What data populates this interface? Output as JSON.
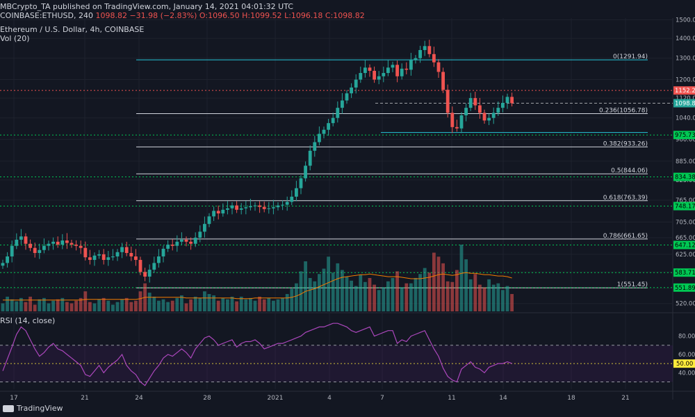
{
  "header": {
    "published": "MBCrypto_TA published on TradingView.com, January 14, 2021 04:01:32 UTC",
    "symbol": "COINBASE:ETHUSD, 240",
    "last": "1098.82",
    "change": "−31.98 (−2.83%)",
    "o": "O:1096.50",
    "h": "H:1099.52",
    "l": "L:1096.18",
    "c": "C:1098.82",
    "instrument": "Ethereum / U.S. Dollar, 4h, COINBASE",
    "vol": "Vol (20)",
    "rsi": "RSI (14, close)"
  },
  "brand": "TradingView",
  "colors": {
    "bg": "#131722",
    "up": "#26a69a",
    "down": "#ef5350",
    "rsi": "#7b1fa2",
    "fib": "#d1d4dc",
    "green": "#00c853",
    "red": "#ef5350",
    "cyan": "#26c6da",
    "vma": "#f57c00"
  },
  "chart_data": [
    {
      "type": "candlestick",
      "title": "Ethereum / U.S. Dollar, 4h, COINBASE",
      "x_ticks": [
        "17",
        "21",
        "24",
        "28",
        "2021",
        "4",
        "7",
        "11",
        "14",
        "18",
        "21"
      ],
      "y_ticks": [
        1500.0,
        1400.0,
        1300.0,
        1200.0,
        1120.0,
        1040.0,
        960.0,
        885.0,
        825.0,
        765.0,
        705.0,
        665.0,
        625.0,
        585.0,
        550.0,
        520.0
      ],
      "y_range": [
        505,
        1510
      ],
      "scale": "log",
      "last_price": "1098.82",
      "price_labels": [
        {
          "label": "1152.24",
          "value": 1152.24,
          "color": "red"
        },
        {
          "label": "1098.82",
          "value": 1098.82,
          "color": "up"
        },
        {
          "label": "975.73",
          "value": 975.73,
          "color": "green"
        },
        {
          "label": "834.38",
          "value": 834.38,
          "color": "green"
        },
        {
          "label": "748.17",
          "value": 748.17,
          "color": "green"
        },
        {
          "label": "647.12",
          "value": 647.12,
          "color": "green"
        },
        {
          "label": "583.71",
          "value": 583.71,
          "color": "green"
        },
        {
          "label": "551.89",
          "value": 551.89,
          "color": "green"
        }
      ],
      "fib_levels": [
        {
          "label": "0(1291.94)",
          "value": 1291.94
        },
        {
          "label": "0.236(1056.78)",
          "value": 1056.78
        },
        {
          "label": "0.382(933.26)",
          "value": 933.26
        },
        {
          "label": "0.5(844.06)",
          "value": 844.06
        },
        {
          "label": "0.618(763.39)",
          "value": 763.39
        },
        {
          "label": "0.786(661.65)",
          "value": 661.65
        },
        {
          "label": "1(551.45)",
          "value": 551.45
        }
      ],
      "close": [
        605,
        620,
        645,
        660,
        668,
        650,
        640,
        628,
        635,
        645,
        650,
        655,
        648,
        658,
        652,
        648,
        645,
        640,
        618,
        612,
        622,
        625,
        612,
        618,
        620,
        630,
        642,
        628,
        620,
        612,
        585,
        575,
        590,
        605,
        620,
        638,
        648,
        645,
        655,
        660,
        655,
        650,
        665,
        680,
        700,
        720,
        735,
        728,
        738,
        742,
        750,
        738,
        742,
        745,
        748,
        750,
        746,
        740,
        742,
        745,
        750,
        752,
        760,
        775,
        800,
        830,
        870,
        920,
        950,
        980,
        995,
        1020,
        1040,
        1080,
        1110,
        1140,
        1165,
        1200,
        1230,
        1255,
        1240,
        1200,
        1215,
        1230,
        1255,
        1268,
        1215,
        1250,
        1245,
        1290,
        1300,
        1340,
        1360,
        1320,
        1280,
        1235,
        1155,
        1060,
        1005,
        1000,
        1050,
        1080,
        1120,
        1090,
        1060,
        1030,
        1040,
        1060,
        1080,
        1100,
        1125,
        1098.82
      ],
      "volume": [
        0.12,
        0.22,
        0.18,
        0.15,
        0.2,
        0.14,
        0.22,
        0.1,
        0.18,
        0.2,
        0.12,
        0.16,
        0.18,
        0.2,
        0.14,
        0.12,
        0.16,
        0.2,
        0.3,
        0.14,
        0.12,
        0.18,
        0.2,
        0.16,
        0.1,
        0.14,
        0.18,
        0.2,
        0.14,
        0.16,
        0.3,
        0.42,
        0.28,
        0.22,
        0.16,
        0.18,
        0.14,
        0.16,
        0.2,
        0.24,
        0.12,
        0.18,
        0.22,
        0.2,
        0.3,
        0.26,
        0.24,
        0.16,
        0.2,
        0.18,
        0.22,
        0.15,
        0.22,
        0.18,
        0.2,
        0.16,
        0.22,
        0.18,
        0.2,
        0.16,
        0.18,
        0.2,
        0.26,
        0.34,
        0.42,
        0.6,
        0.75,
        0.5,
        0.45,
        0.56,
        0.64,
        0.82,
        0.58,
        0.72,
        0.62,
        0.52,
        0.46,
        0.38,
        0.55,
        0.44,
        0.5,
        0.4,
        0.32,
        0.36,
        0.45,
        0.5,
        0.6,
        0.36,
        0.42,
        0.42,
        0.5,
        0.56,
        0.65,
        0.58,
        0.88,
        0.82,
        0.72,
        0.45,
        0.44,
        0.62,
        1.0,
        0.78,
        0.48,
        0.56,
        0.4,
        0.36,
        0.48,
        0.4,
        0.42,
        0.32,
        0.38,
        0.26
      ],
      "vol_ma": [
        0.17,
        0.17,
        0.17,
        0.17,
        0.17,
        0.17,
        0.17,
        0.17,
        0.17,
        0.17,
        0.17,
        0.17,
        0.17,
        0.17,
        0.17,
        0.17,
        0.17,
        0.17,
        0.18,
        0.18,
        0.18,
        0.18,
        0.18,
        0.18,
        0.18,
        0.18,
        0.18,
        0.18,
        0.18,
        0.18,
        0.19,
        0.21,
        0.21,
        0.21,
        0.21,
        0.21,
        0.21,
        0.21,
        0.21,
        0.21,
        0.2,
        0.2,
        0.2,
        0.2,
        0.2,
        0.2,
        0.2,
        0.2,
        0.2,
        0.2,
        0.2,
        0.19,
        0.19,
        0.19,
        0.19,
        0.2,
        0.2,
        0.2,
        0.2,
        0.2,
        0.2,
        0.2,
        0.2,
        0.21,
        0.23,
        0.26,
        0.3,
        0.32,
        0.34,
        0.37,
        0.4,
        0.43,
        0.46,
        0.49,
        0.51,
        0.52,
        0.53,
        0.54,
        0.55,
        0.55,
        0.56,
        0.55,
        0.54,
        0.53,
        0.52,
        0.52,
        0.52,
        0.51,
        0.5,
        0.49,
        0.49,
        0.49,
        0.5,
        0.51,
        0.53,
        0.55,
        0.56,
        0.55,
        0.54,
        0.55,
        0.57,
        0.58,
        0.57,
        0.57,
        0.56,
        0.55,
        0.55,
        0.54,
        0.53,
        0.53,
        0.52,
        0.5
      ]
    },
    {
      "type": "line",
      "title": "RSI (14, close)",
      "y_ticks": [
        80.0,
        60.0,
        40.0
      ],
      "y_range": [
        22,
        104
      ],
      "bands": [
        70,
        30
      ],
      "midline": 50,
      "last_label": "50.00",
      "values": [
        42,
        55,
        68,
        82,
        90,
        86,
        76,
        66,
        58,
        62,
        68,
        72,
        66,
        64,
        60,
        56,
        52,
        48,
        38,
        36,
        42,
        48,
        40,
        46,
        50,
        54,
        60,
        48,
        42,
        38,
        30,
        26,
        34,
        42,
        48,
        56,
        60,
        58,
        62,
        66,
        62,
        56,
        66,
        72,
        78,
        80,
        76,
        70,
        72,
        74,
        76,
        68,
        72,
        74,
        74,
        76,
        72,
        66,
        68,
        70,
        72,
        72,
        74,
        76,
        78,
        80,
        84,
        86,
        88,
        90,
        90,
        92,
        94,
        94,
        92,
        90,
        86,
        84,
        86,
        88,
        90,
        80,
        82,
        84,
        86,
        86,
        72,
        76,
        74,
        80,
        82,
        84,
        86,
        76,
        66,
        58,
        45,
        36,
        32,
        30,
        44,
        48,
        52,
        46,
        44,
        40,
        46,
        48,
        50,
        50,
        52,
        50
      ]
    }
  ]
}
